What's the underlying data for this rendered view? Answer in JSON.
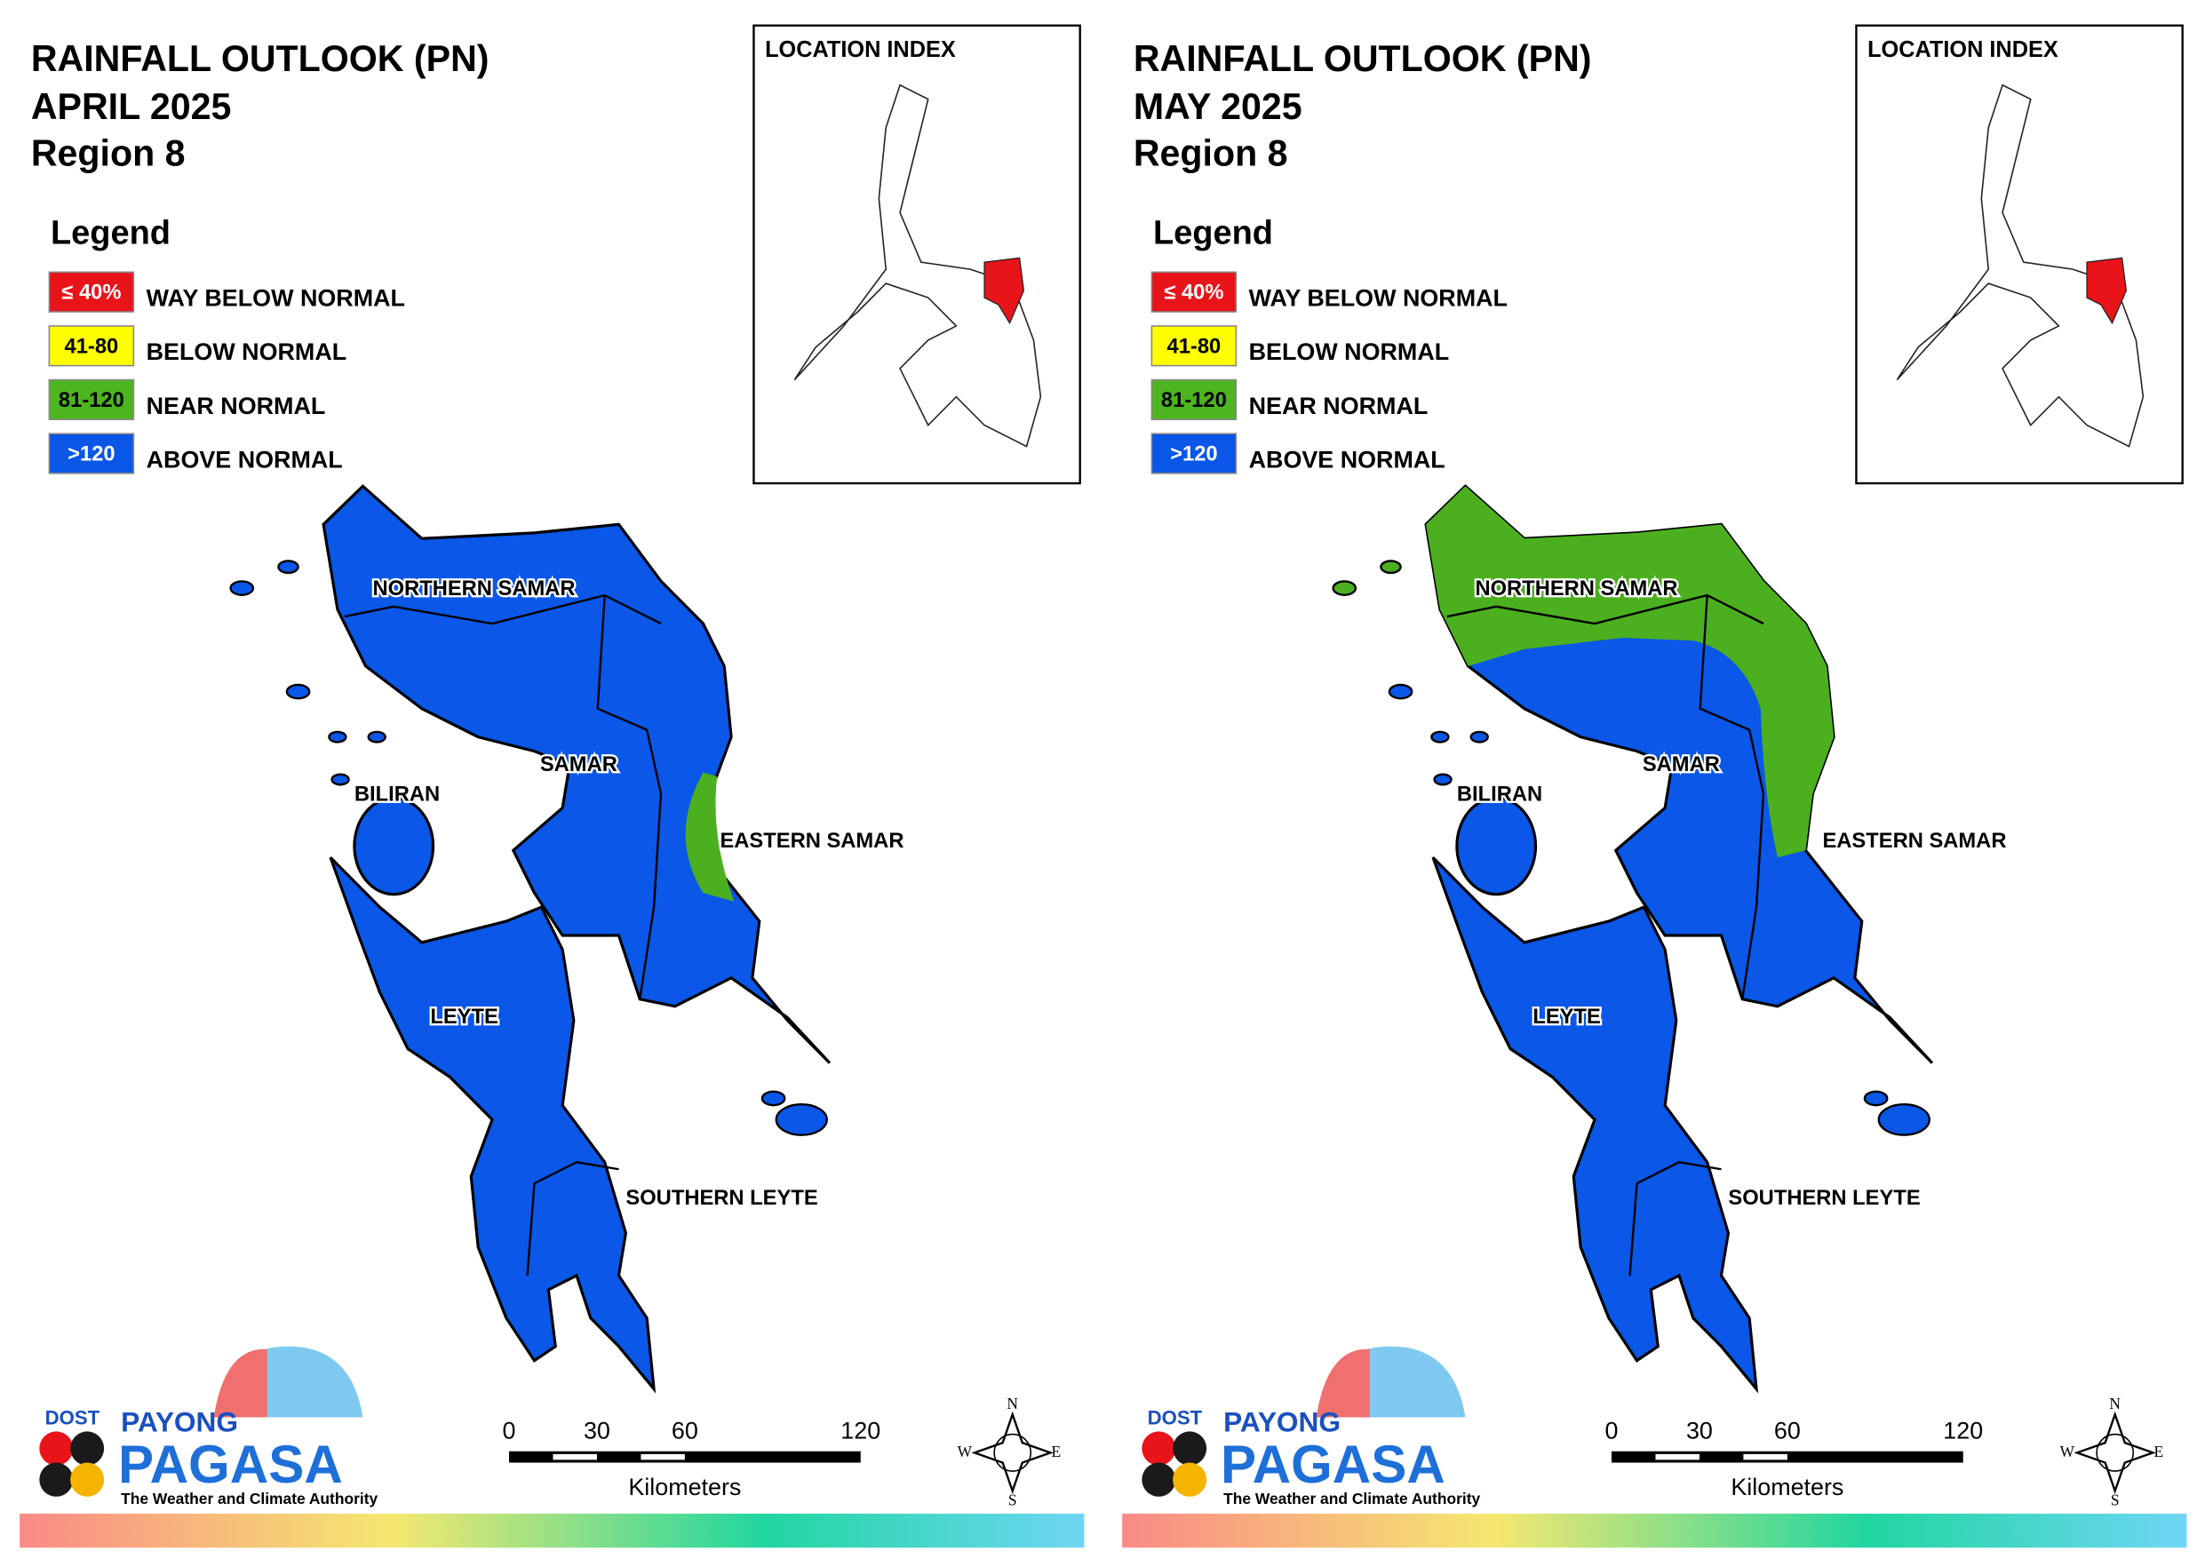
{
  "panels": [
    {
      "title": "RAINFALL OUTLOOK (PN)",
      "month": "APRIL 2025",
      "region": "Region 8",
      "legend_title": "Legend",
      "legend": [
        {
          "range": "≤ 40%",
          "label": "WAY BELOW NORMAL"
        },
        {
          "range": "41-80",
          "label": "BELOW NORMAL"
        },
        {
          "range": "81-120",
          "label": "NEAR NORMAL"
        },
        {
          "range": ">120",
          "label": "ABOVE NORMAL"
        }
      ],
      "location_index": "LOCATION INDEX",
      "map_labels": [
        "NORTHERN SAMAR",
        "SAMAR",
        "BILIRAN",
        "EASTERN SAMAR",
        "LEYTE",
        "SOUTHERN LEYTE"
      ],
      "scale": {
        "ticks": [
          0,
          30,
          60,
          120
        ],
        "unit": "Kilometers"
      },
      "compass": [
        "N",
        "W",
        "E",
        "S"
      ],
      "logo": {
        "dost": "DOST",
        "payong": "PAYONG",
        "pagasa": "PAGASA",
        "tagline": "The Weather and Climate Authority"
      }
    },
    {
      "title": "RAINFALL OUTLOOK (PN)",
      "month": "MAY 2025",
      "region": "Region 8",
      "legend_title": "Legend",
      "legend": [
        {
          "range": "≤ 40%",
          "label": "WAY BELOW NORMAL"
        },
        {
          "range": "41-80",
          "label": "BELOW NORMAL"
        },
        {
          "range": "81-120",
          "label": "NEAR NORMAL"
        },
        {
          "range": ">120",
          "label": "ABOVE NORMAL"
        }
      ],
      "location_index": "LOCATION INDEX",
      "map_labels": [
        "NORTHERN SAMAR",
        "SAMAR",
        "BILIRAN",
        "EASTERN SAMAR",
        "LEYTE",
        "SOUTHERN LEYTE"
      ],
      "scale": {
        "ticks": [
          0,
          30,
          60,
          120
        ],
        "unit": "Kilometers"
      },
      "compass": [
        "N",
        "W",
        "E",
        "S"
      ],
      "logo": {
        "dost": "DOST",
        "payong": "PAYONG",
        "pagasa": "PAGASA",
        "tagline": "The Weather and Climate Authority"
      }
    }
  ]
}
